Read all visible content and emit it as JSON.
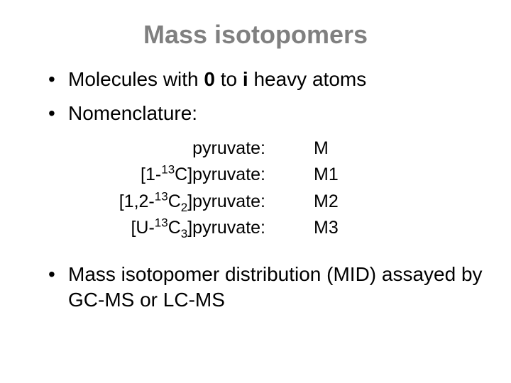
{
  "title": "Mass isotopomers",
  "title_color": "#808080",
  "text_color": "#000000",
  "background_color": "#ffffff",
  "title_fontsize": 36,
  "body_fontsize": 28,
  "table_fontsize": 25,
  "bullets": [
    {
      "pre": "Molecules with ",
      "bold1": "0",
      "mid": " to ",
      "bold2": "i",
      "post": " heavy atoms"
    },
    {
      "text": "Nomenclature:"
    },
    {
      "text": "Mass isotopomer distribution (MID) assayed by GC-MS or LC-MS"
    }
  ],
  "table": [
    {
      "label_plain": "pyruvate:",
      "value": "M"
    },
    {
      "label_pre": "[1-",
      "sup": "13",
      "label_mid": "C",
      "sub": "",
      "label_post": "]pyruvate:",
      "value": "M1"
    },
    {
      "label_pre": "[1,2-",
      "sup": "13",
      "label_mid": "C",
      "sub": "2",
      "label_post": "]pyruvate:",
      "value": "M2"
    },
    {
      "label_pre": "[U-",
      "sup": "13",
      "label_mid": "C",
      "sub": "3",
      "label_post": "]pyruvate:",
      "value": "M3"
    }
  ]
}
